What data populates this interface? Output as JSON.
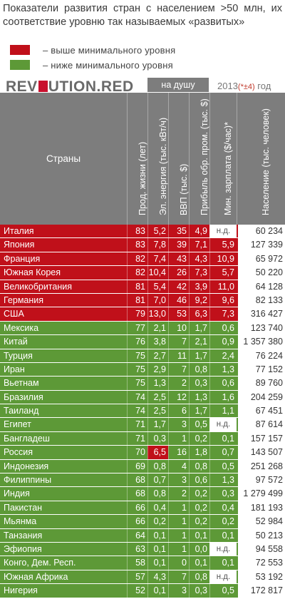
{
  "title": "Показатели развития стран с населением >50 млн, их соответствие уровню так называемых «развитых»",
  "legend": [
    {
      "label": "– выше минимального уровня",
      "color": "#c0101a"
    },
    {
      "label": "– ниже минимального уровня",
      "color": "#5d9937"
    }
  ],
  "brand": {
    "part1": "REV",
    "part2": "UTION.RED"
  },
  "per_capita_label": "на душу",
  "year": {
    "value": "2013",
    "note": "(*±4)",
    "suffix": " год"
  },
  "colors": {
    "above": "#c0101a",
    "below": "#5d9937",
    "header": "#7d7d7d"
  },
  "chart_data": {
    "type": "table",
    "columns": [
      "Страны",
      "Прод. жизни (лет)",
      "Эл. энергия (тыс. кВт/ч)",
      "ВВП (тыс. $)",
      "Прибыль обр. пром. (тыс. $)",
      "Мин. зарплата ($/час)*",
      "Население (тыс. человек)"
    ],
    "rows": [
      {
        "country": "Италия",
        "status": "above",
        "life": "83",
        "energy": "5,2",
        "gdp": "35",
        "profit": "4,9",
        "wage": "н.д.",
        "population": "60 234"
      },
      {
        "country": "Япония",
        "status": "above",
        "life": "83",
        "energy": "7,8",
        "gdp": "39",
        "profit": "7,1",
        "wage": "5,9",
        "population": "127 339"
      },
      {
        "country": "Франция",
        "status": "above",
        "life": "82",
        "energy": "7,4",
        "gdp": "43",
        "profit": "4,3",
        "wage": "10,9",
        "population": "65 972"
      },
      {
        "country": "Южная Корея",
        "status": "above",
        "life": "82",
        "energy": "10,4",
        "gdp": "26",
        "profit": "7,3",
        "wage": "5,7",
        "population": "50 220"
      },
      {
        "country": "Великобритания",
        "status": "above",
        "life": "81",
        "energy": "5,4",
        "gdp": "42",
        "profit": "3,9",
        "wage": "11,0",
        "population": "64 128"
      },
      {
        "country": "Германия",
        "status": "above",
        "life": "81",
        "energy": "7,0",
        "gdp": "46",
        "profit": "9,2",
        "wage": "9,6",
        "population": "82 133"
      },
      {
        "country": "США",
        "status": "above",
        "life": "79",
        "energy": "13,0",
        "gdp": "53",
        "profit": "6,3",
        "wage": "7,3",
        "population": "316 427"
      },
      {
        "country": "Мексика",
        "status": "below",
        "life": "77",
        "energy": "2,1",
        "gdp": "10",
        "profit": "1,7",
        "wage": "0,6",
        "population": "123 740"
      },
      {
        "country": "Китай",
        "status": "below",
        "life": "76",
        "energy": "3,8",
        "gdp": "7",
        "profit": "2,1",
        "wage": "0,9",
        "population": "1 357 380"
      },
      {
        "country": "Турция",
        "status": "below",
        "life": "75",
        "energy": "2,7",
        "gdp": "11",
        "profit": "1,7",
        "wage": "2,4",
        "population": "76 224"
      },
      {
        "country": "Иран",
        "status": "below",
        "life": "75",
        "energy": "2,9",
        "gdp": "7",
        "profit": "0,8",
        "wage": "1,3",
        "population": "77 152"
      },
      {
        "country": "Вьетнам",
        "status": "below",
        "life": "75",
        "energy": "1,3",
        "gdp": "2",
        "profit": "0,3",
        "wage": "0,6",
        "population": "89 760"
      },
      {
        "country": "Бразилия",
        "status": "below",
        "life": "74",
        "energy": "2,5",
        "gdp": "12",
        "profit": "1,3",
        "wage": "1,6",
        "population": "204 259"
      },
      {
        "country": "Таиланд",
        "status": "below",
        "life": "74",
        "energy": "2,5",
        "gdp": "6",
        "profit": "1,7",
        "wage": "1,1",
        "population": "67 451"
      },
      {
        "country": "Египет",
        "status": "below",
        "life": "71",
        "energy": "1,7",
        "gdp": "3",
        "profit": "0,5",
        "wage": "н.д.",
        "population": "87 614"
      },
      {
        "country": "Бангладеш",
        "status": "below",
        "life": "71",
        "energy": "0,3",
        "gdp": "1",
        "profit": "0,2",
        "wage": "0,1",
        "population": "157 157"
      },
      {
        "country": "Россия",
        "status": "below",
        "life": "70",
        "energy": "6,5",
        "gdp": "16",
        "profit": "1,8",
        "wage": "0,7",
        "population": "143 507",
        "highlight": "energy"
      },
      {
        "country": "Индонезия",
        "status": "below",
        "life": "69",
        "energy": "0,8",
        "gdp": "4",
        "profit": "0,8",
        "wage": "0,5",
        "population": "251 268"
      },
      {
        "country": "Филиппины",
        "status": "below",
        "life": "68",
        "energy": "0,7",
        "gdp": "3",
        "profit": "0,6",
        "wage": "1,3",
        "population": "97 572"
      },
      {
        "country": "Индия",
        "status": "below",
        "life": "68",
        "energy": "0,8",
        "gdp": "2",
        "profit": "0,2",
        "wage": "0,3",
        "population": "1 279 499"
      },
      {
        "country": "Пакистан",
        "status": "below",
        "life": "66",
        "energy": "0,4",
        "gdp": "1",
        "profit": "0,2",
        "wage": "0,4",
        "population": "181 193"
      },
      {
        "country": "Мьянма",
        "status": "below",
        "life": "66",
        "energy": "0,2",
        "gdp": "1",
        "profit": "0,2",
        "wage": "0,2",
        "population": "52 984"
      },
      {
        "country": "Танзания",
        "status": "below",
        "life": "64",
        "energy": "0,1",
        "gdp": "1",
        "profit": "0,1",
        "wage": "0,1",
        "population": "50 213"
      },
      {
        "country": "Эфиопия",
        "status": "below",
        "life": "63",
        "energy": "0,1",
        "gdp": "1",
        "profit": "0,0",
        "wage": "н.д.",
        "population": "94 558"
      },
      {
        "country": "Конго, Дем. Респ.",
        "status": "below",
        "life": "58",
        "energy": "0,1",
        "gdp": "0",
        "profit": "0,1",
        "wage": "0,1",
        "population": "72 553"
      },
      {
        "country": "Южная Африка",
        "status": "below",
        "life": "57",
        "energy": "4,3",
        "gdp": "7",
        "profit": "0,8",
        "wage": "н.д.",
        "population": "53 192"
      },
      {
        "country": "Нигерия",
        "status": "below",
        "life": "52",
        "energy": "0,1",
        "gdp": "3",
        "profit": "0,3",
        "wage": "0,5",
        "population": "172 817"
      }
    ]
  }
}
